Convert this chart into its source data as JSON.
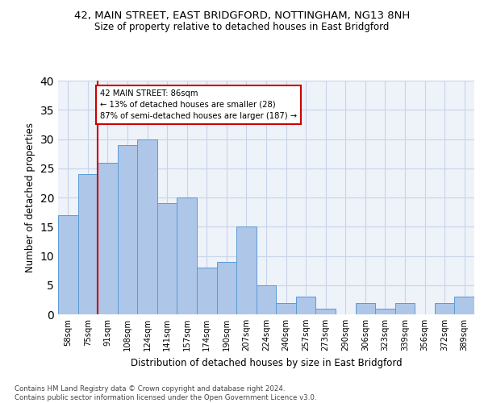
{
  "title1": "42, MAIN STREET, EAST BRIDGFORD, NOTTINGHAM, NG13 8NH",
  "title2": "Size of property relative to detached houses in East Bridgford",
  "xlabel": "Distribution of detached houses by size in East Bridgford",
  "ylabel": "Number of detached properties",
  "footnote1": "Contains HM Land Registry data © Crown copyright and database right 2024.",
  "footnote2": "Contains public sector information licensed under the Open Government Licence v3.0.",
  "bar_labels": [
    "58sqm",
    "75sqm",
    "91sqm",
    "108sqm",
    "124sqm",
    "141sqm",
    "157sqm",
    "174sqm",
    "190sqm",
    "207sqm",
    "224sqm",
    "240sqm",
    "257sqm",
    "273sqm",
    "290sqm",
    "306sqm",
    "323sqm",
    "339sqm",
    "356sqm",
    "372sqm",
    "389sqm"
  ],
  "bar_values": [
    17,
    24,
    26,
    29,
    30,
    19,
    20,
    8,
    9,
    15,
    5,
    2,
    3,
    1,
    0,
    2,
    1,
    2,
    0,
    2,
    3
  ],
  "bar_color": "#aec6e8",
  "bar_edge_color": "#5b9bd5",
  "annotation_line1": "42 MAIN STREET: 86sqm",
  "annotation_line2": "← 13% of detached houses are smaller (28)",
  "annotation_line3": "87% of semi-detached houses are larger (187) →",
  "vline_x": 1.5,
  "vline_color": "#cc0000",
  "annotation_box_color": "#cc0000",
  "ylim": [
    0,
    40
  ],
  "yticks": [
    0,
    5,
    10,
    15,
    20,
    25,
    30,
    35,
    40
  ],
  "grid_color": "#c8d4e8",
  "bg_color": "#eef2f9"
}
